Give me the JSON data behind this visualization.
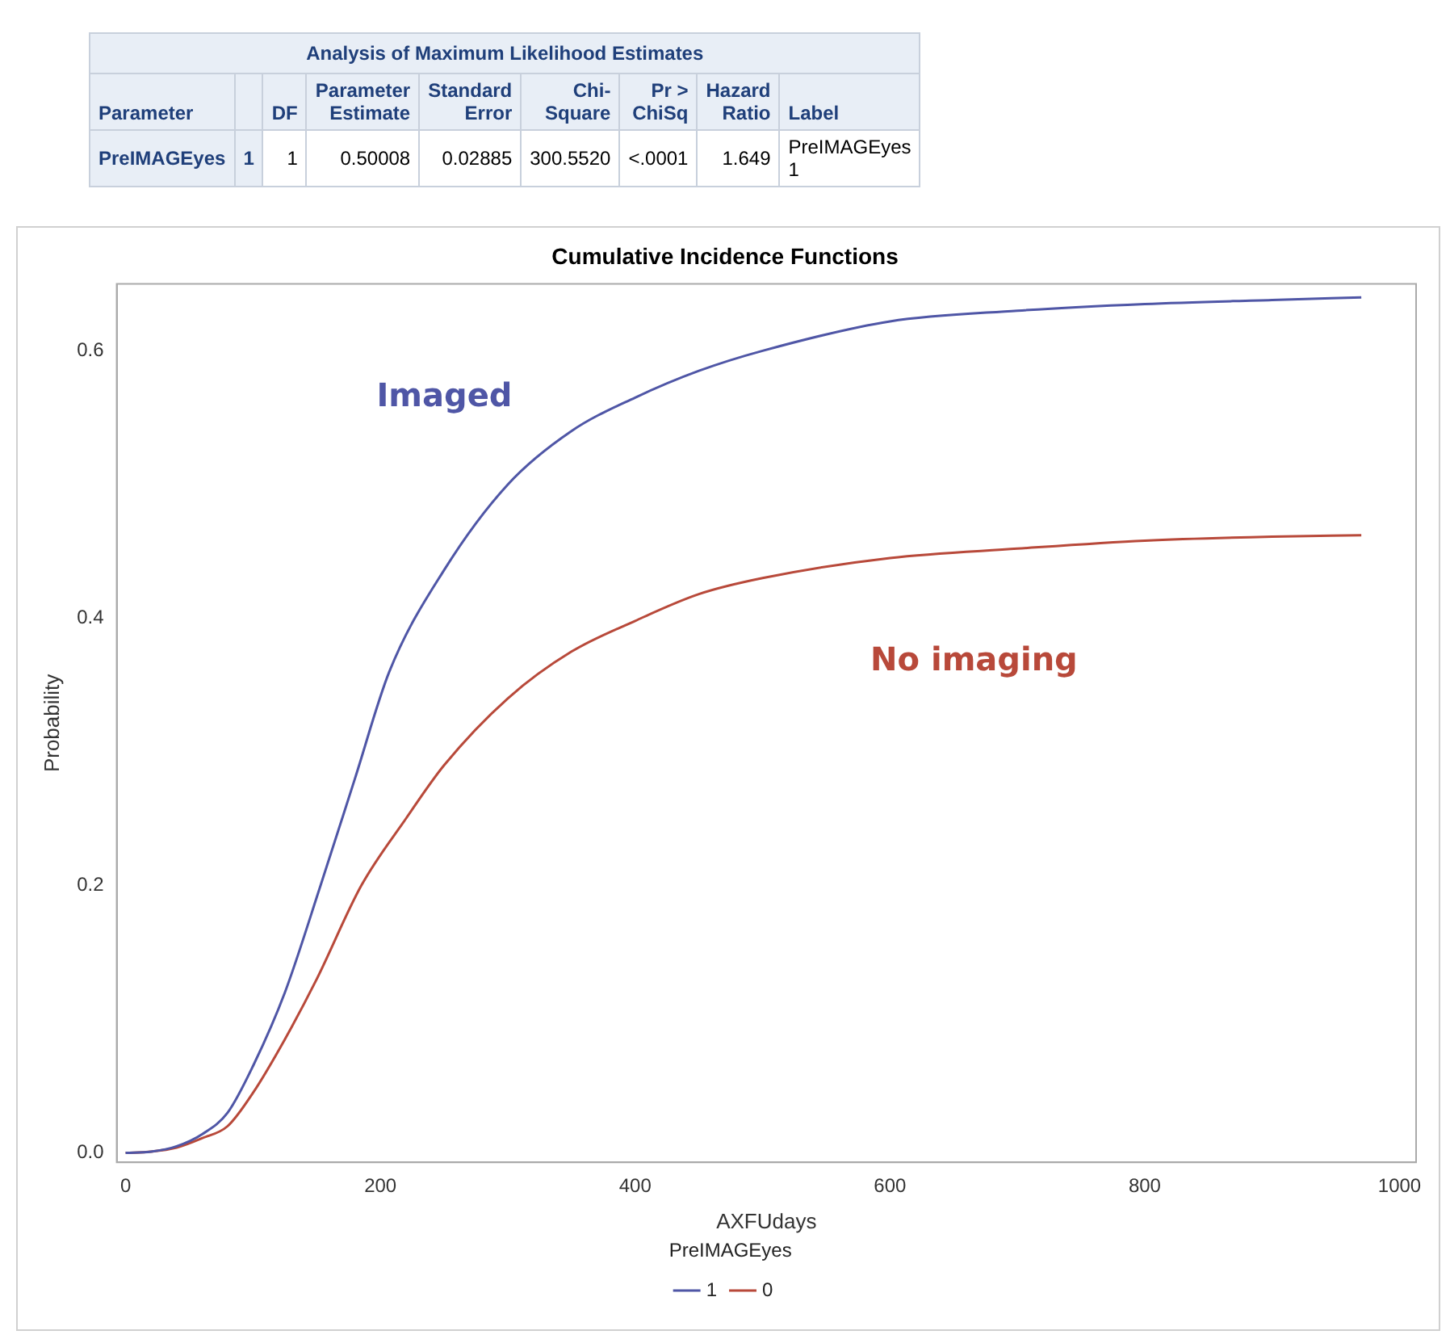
{
  "chart_data": [
    {
      "type": "other",
      "title": "Analysis of Maximum Likelihood Estimates",
      "categories": [
        "Parameter",
        null,
        "DF",
        "Parameter Estimate",
        "Standard Error",
        "Chi-Square",
        "Pr > ChiSq",
        "Hazard Ratio",
        "Label"
      ],
      "cell_labels": [
        [
          "PreIMAGEyes",
          "1",
          "1",
          "0.50008",
          "0.02885",
          "300.5520",
          "<.0001",
          "1.649",
          "PreIMAGEyes 1"
        ]
      ]
    },
    {
      "type": "line",
      "title": "Cumulative Incidence Functions",
      "xlabel": "AXFUdays",
      "ylabel": "Probability",
      "legend_title": "PreIMAGEyes",
      "legend": "bottom",
      "grid": false,
      "marker": "none",
      "line_style": "solid",
      "xlim": [
        -7,
        1013
      ],
      "ylim": [
        -0.007,
        0.65
      ],
      "xticks": [
        0,
        200,
        400,
        600,
        800,
        1000
      ],
      "yticks": [
        {
          "value": 0,
          "label": "0.0"
        },
        0.2,
        0.4,
        0.6
      ],
      "annotations": [
        "Imaged",
        "No imaging"
      ],
      "series": [
        {
          "name": "1",
          "color": "#4f56a6",
          "x": [
            0,
            20,
            40,
            60,
            80,
            100,
            125,
            153,
            180,
            207,
            250,
            300,
            350,
            400,
            450,
            500,
            600,
            700,
            800,
            900,
            970
          ],
          "values": [
            0,
            0.001,
            0.005,
            0.014,
            0.03,
            0.065,
            0.12,
            0.2,
            0.28,
            0.36,
            0.436,
            0.5,
            0.54,
            0.565,
            0.585,
            0.6,
            0.622,
            0.63,
            0.635,
            0.638,
            0.64
          ]
        },
        {
          "name": "0",
          "color": "#b8493a",
          "x": [
            0,
            20,
            40,
            60,
            80,
            100,
            125,
            150,
            185,
            220,
            250,
            300,
            350,
            400,
            450,
            500,
            600,
            700,
            800,
            900,
            970
          ],
          "values": [
            0,
            0.001,
            0.004,
            0.011,
            0.02,
            0.045,
            0.085,
            0.13,
            0.2,
            0.25,
            0.29,
            0.34,
            0.375,
            0.398,
            0.418,
            0.43,
            0.445,
            0.452,
            0.458,
            0.461,
            0.462
          ]
        }
      ]
    }
  ]
}
